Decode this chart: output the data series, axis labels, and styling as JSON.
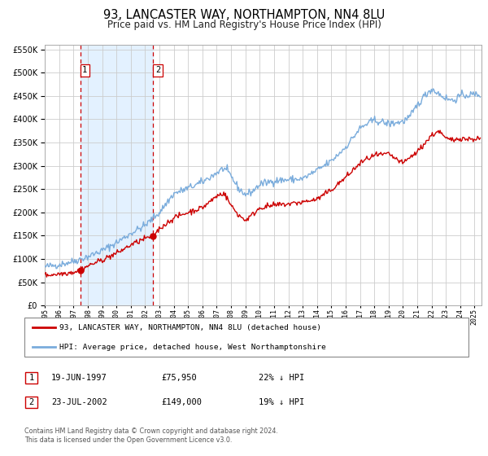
{
  "title": "93, LANCASTER WAY, NORTHAMPTON, NN4 8LU",
  "subtitle": "Price paid vs. HM Land Registry's House Price Index (HPI)",
  "title_fontsize": 10.5,
  "subtitle_fontsize": 8.5,
  "background_color": "#ffffff",
  "plot_bg_color": "#ffffff",
  "grid_color": "#cccccc",
  "ylim": [
    0,
    560000
  ],
  "xlim_start": 1995.0,
  "xlim_end": 2025.5,
  "sale1_date": 1997.46,
  "sale1_price": 75950,
  "sale1_label": "1",
  "sale2_date": 2002.55,
  "sale2_price": 149000,
  "sale2_label": "2",
  "red_line_color": "#cc0000",
  "blue_line_color": "#7aacdc",
  "shade_color": "#ddeeff",
  "legend_entry1": "93, LANCASTER WAY, NORTHAMPTON, NN4 8LU (detached house)",
  "legend_entry2": "HPI: Average price, detached house, West Northamptonshire",
  "table_row1": [
    "1",
    "19-JUN-1997",
    "£75,950",
    "22% ↓ HPI"
  ],
  "table_row2": [
    "2",
    "23-JUL-2002",
    "£149,000",
    "19% ↓ HPI"
  ],
  "footer_line1": "Contains HM Land Registry data © Crown copyright and database right 2024.",
  "footer_line2": "This data is licensed under the Open Government Licence v3.0."
}
